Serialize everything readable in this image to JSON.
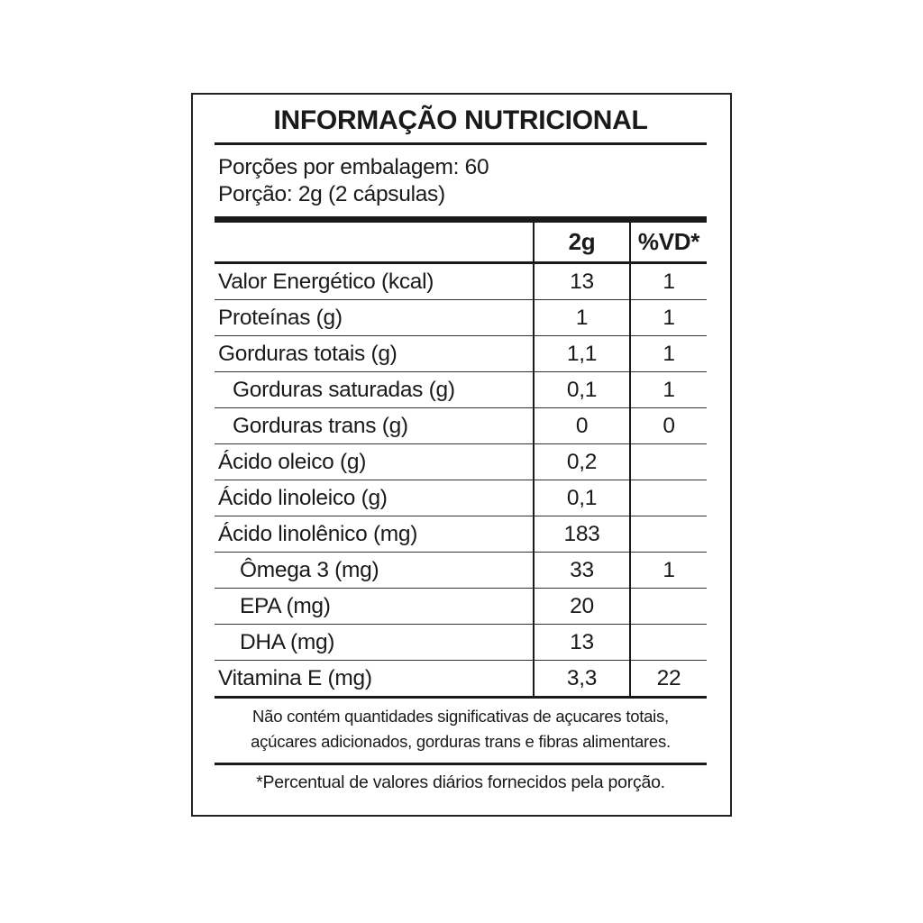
{
  "title": "INFORMAÇÃO NUTRICIONAL",
  "servings_per_package": "Porções por embalagem: 60",
  "serving_size": "Porção: 2g (2 cápsulas)",
  "columns": [
    "",
    "2g",
    "%VD*"
  ],
  "rows": [
    {
      "label": "Valor Energético (kcal)",
      "amount": "13",
      "dv": "1",
      "indent": 0
    },
    {
      "label": "Proteínas (g)",
      "amount": "1",
      "dv": "1",
      "indent": 0
    },
    {
      "label": "Gorduras totais (g)",
      "amount": "1,1",
      "dv": "1",
      "indent": 0
    },
    {
      "label": "Gorduras saturadas (g)",
      "amount": "0,1",
      "dv": "1",
      "indent": 1
    },
    {
      "label": "Gorduras trans (g)",
      "amount": "0",
      "dv": "0",
      "indent": 1
    },
    {
      "label": "Ácido oleico (g)",
      "amount": "0,2",
      "dv": "",
      "indent": 0
    },
    {
      "label": "Ácido linoleico (g)",
      "amount": "0,1",
      "dv": "",
      "indent": 0
    },
    {
      "label": "Ácido linolênico (mg)",
      "amount": "183",
      "dv": "",
      "indent": 0
    },
    {
      "label": "Ômega 3 (mg)",
      "amount": "33",
      "dv": "1",
      "indent": 2
    },
    {
      "label": "EPA (mg)",
      "amount": "20",
      "dv": "",
      "indent": 2
    },
    {
      "label": "DHA (mg)",
      "amount": "13",
      "dv": "",
      "indent": 2
    },
    {
      "label": "Vitamina E (mg)",
      "amount": "3,3",
      "dv": "22",
      "indent": 0
    }
  ],
  "note_lines": [
    "Não contém quantidades significativas de açucares totais,",
    "açúcares adicionados, gorduras trans e fibras alimentares."
  ],
  "footnote": "*Percentual de valores diários fornecidos pela porção."
}
